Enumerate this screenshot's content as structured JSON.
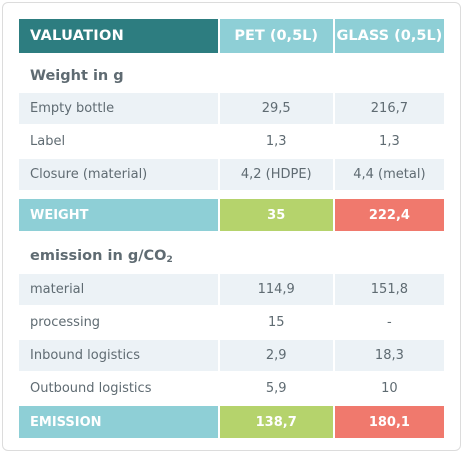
{
  "header": {
    "valuation": "VALUATION",
    "pet": "PET (0,5L)",
    "glass": "GLASS (0,5L)"
  },
  "weight_section": {
    "title": "Weight in g",
    "rows": [
      {
        "label": "Empty bottle",
        "pet": "29,5",
        "glass": "216,7"
      },
      {
        "label": "Label",
        "pet": "1,3",
        "glass": "1,3"
      },
      {
        "label": "Closure (material)",
        "pet": "4,2 (HDPE)",
        "glass": "4,4 (metal)"
      }
    ],
    "total": {
      "label": "WEIGHT",
      "pet": "35",
      "glass": "222,4"
    }
  },
  "emission_section": {
    "title_main": "emission in g/CO",
    "title_sub": "2",
    "rows": [
      {
        "label": "material",
        "pet": "114,9",
        "glass": "151,8"
      },
      {
        "label": "processing",
        "pet": "15",
        "glass": "-"
      },
      {
        "label": "Inbound logistics",
        "pet": "2,9",
        "glass": "18,3"
      },
      {
        "label": "Outbound logistics",
        "pet": "5,9",
        "glass": "10"
      }
    ],
    "total": {
      "label": "EMISSION",
      "pet": "138,7",
      "glass": "180,1"
    }
  }
}
